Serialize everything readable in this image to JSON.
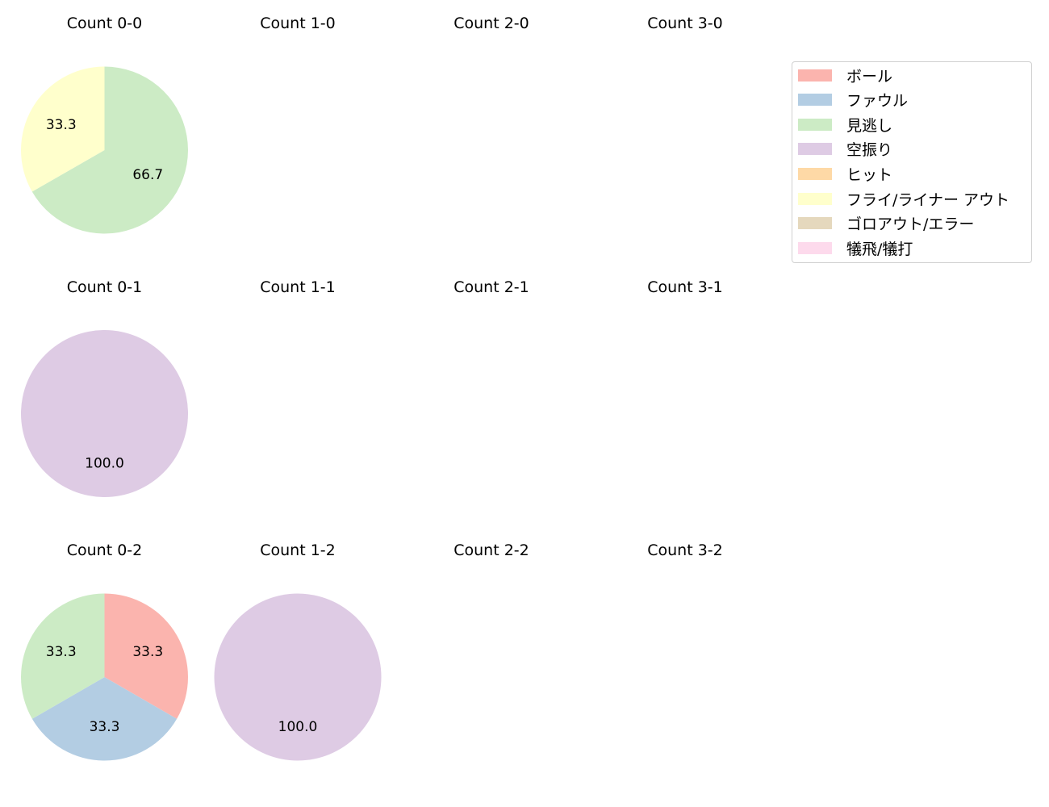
{
  "chart_data": {
    "type": "pie",
    "layout": {
      "rows": 3,
      "cols": 4,
      "legend_position": "upper right"
    },
    "legend": [
      {
        "label": "ボール",
        "color": "#fbb4ae"
      },
      {
        "label": "ファウル",
        "color": "#b3cde3"
      },
      {
        "label": "見逃し",
        "color": "#ccebc5"
      },
      {
        "label": "空振り",
        "color": "#decbe4"
      },
      {
        "label": "ヒット",
        "color": "#fed9a6"
      },
      {
        "label": "フライ/ライナー アウト",
        "color": "#ffffcc"
      },
      {
        "label": "ゴロアウト/エラー",
        "color": "#e5d8bd"
      },
      {
        "label": "犠飛/犠打",
        "color": "#fddaec"
      }
    ],
    "subplots": [
      {
        "title": "Count 0-0",
        "row": 0,
        "col": 0,
        "slices": [
          {
            "label": "見逃し",
            "value": 66.7,
            "color": "#ccebc5"
          },
          {
            "label": "フライ/ライナー アウト",
            "value": 33.3,
            "color": "#ffffcc"
          }
        ]
      },
      {
        "title": "Count 1-0",
        "row": 0,
        "col": 1,
        "slices": []
      },
      {
        "title": "Count 2-0",
        "row": 0,
        "col": 2,
        "slices": []
      },
      {
        "title": "Count 3-0",
        "row": 0,
        "col": 3,
        "slices": []
      },
      {
        "title": "Count 0-1",
        "row": 1,
        "col": 0,
        "slices": [
          {
            "label": "空振り",
            "value": 100.0,
            "color": "#decbe4"
          }
        ]
      },
      {
        "title": "Count 1-1",
        "row": 1,
        "col": 1,
        "slices": []
      },
      {
        "title": "Count 2-1",
        "row": 1,
        "col": 2,
        "slices": []
      },
      {
        "title": "Count 3-1",
        "row": 1,
        "col": 3,
        "slices": []
      },
      {
        "title": "Count 0-2",
        "row": 2,
        "col": 0,
        "slices": [
          {
            "label": "ボール",
            "value": 33.3,
            "color": "#fbb4ae"
          },
          {
            "label": "ファウル",
            "value": 33.3,
            "color": "#b3cde3"
          },
          {
            "label": "見逃し",
            "value": 33.3,
            "color": "#ccebc5"
          }
        ]
      },
      {
        "title": "Count 1-2",
        "row": 2,
        "col": 1,
        "slices": [
          {
            "label": "空振り",
            "value": 100.0,
            "color": "#decbe4"
          }
        ]
      },
      {
        "title": "Count 2-2",
        "row": 2,
        "col": 2,
        "slices": []
      },
      {
        "title": "Count 3-2",
        "row": 2,
        "col": 3,
        "slices": []
      }
    ]
  }
}
